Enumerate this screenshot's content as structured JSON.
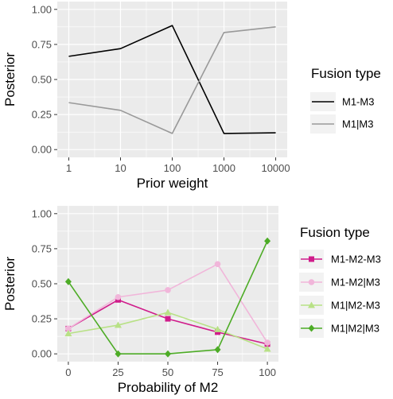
{
  "chart_data": [
    {
      "type": "line",
      "xlabel": "Prior weight",
      "ylabel": "Posterior",
      "x_scale": "log10",
      "categories": [
        "1",
        "10",
        "100",
        "1000",
        "10000"
      ],
      "x": [
        1,
        10,
        100,
        1000,
        10000
      ],
      "ylim": [
        0,
        1
      ],
      "yticks": [
        "0.00",
        "0.25",
        "0.50",
        "0.75",
        "1.00"
      ],
      "grid": true,
      "legend": {
        "title": "Fusion type",
        "position": "right"
      },
      "series": [
        {
          "name": "M1-M3",
          "color": "#000000",
          "marker": "none",
          "values": [
            0.665,
            0.72,
            0.885,
            0.115,
            0.12
          ]
        },
        {
          "name": "M1|M3",
          "color": "#999999",
          "marker": "none",
          "values": [
            0.335,
            0.28,
            0.115,
            0.835,
            0.875
          ]
        }
      ]
    },
    {
      "type": "line",
      "xlabel": "Probability of M2",
      "ylabel": "Posterior",
      "categories": [
        "0",
        "25",
        "50",
        "75",
        "100"
      ],
      "x": [
        0,
        25,
        50,
        75,
        100
      ],
      "xlim": [
        0,
        100
      ],
      "ylim": [
        0,
        1
      ],
      "yticks": [
        "0.00",
        "0.25",
        "0.50",
        "0.75",
        "1.00"
      ],
      "grid": true,
      "legend": {
        "title": "Fusion type",
        "position": "right"
      },
      "series": [
        {
          "name": "M1-M2-M3",
          "color": "#d01c8b",
          "marker": "square",
          "values": [
            0.18,
            0.385,
            0.25,
            0.155,
            0.07
          ]
        },
        {
          "name": "M1-M2|M3",
          "color": "#f1b6da",
          "marker": "circle",
          "values": [
            0.18,
            0.405,
            0.455,
            0.64,
            0.08
          ]
        },
        {
          "name": "M1|M2-M3",
          "color": "#b8e186",
          "marker": "triangle",
          "values": [
            0.145,
            0.205,
            0.295,
            0.175,
            0.035
          ]
        },
        {
          "name": "M1|M2|M3",
          "color": "#4dac26",
          "marker": "diamond",
          "values": [
            0.515,
            0.0,
            0.0,
            0.03,
            0.805
          ]
        }
      ]
    }
  ]
}
